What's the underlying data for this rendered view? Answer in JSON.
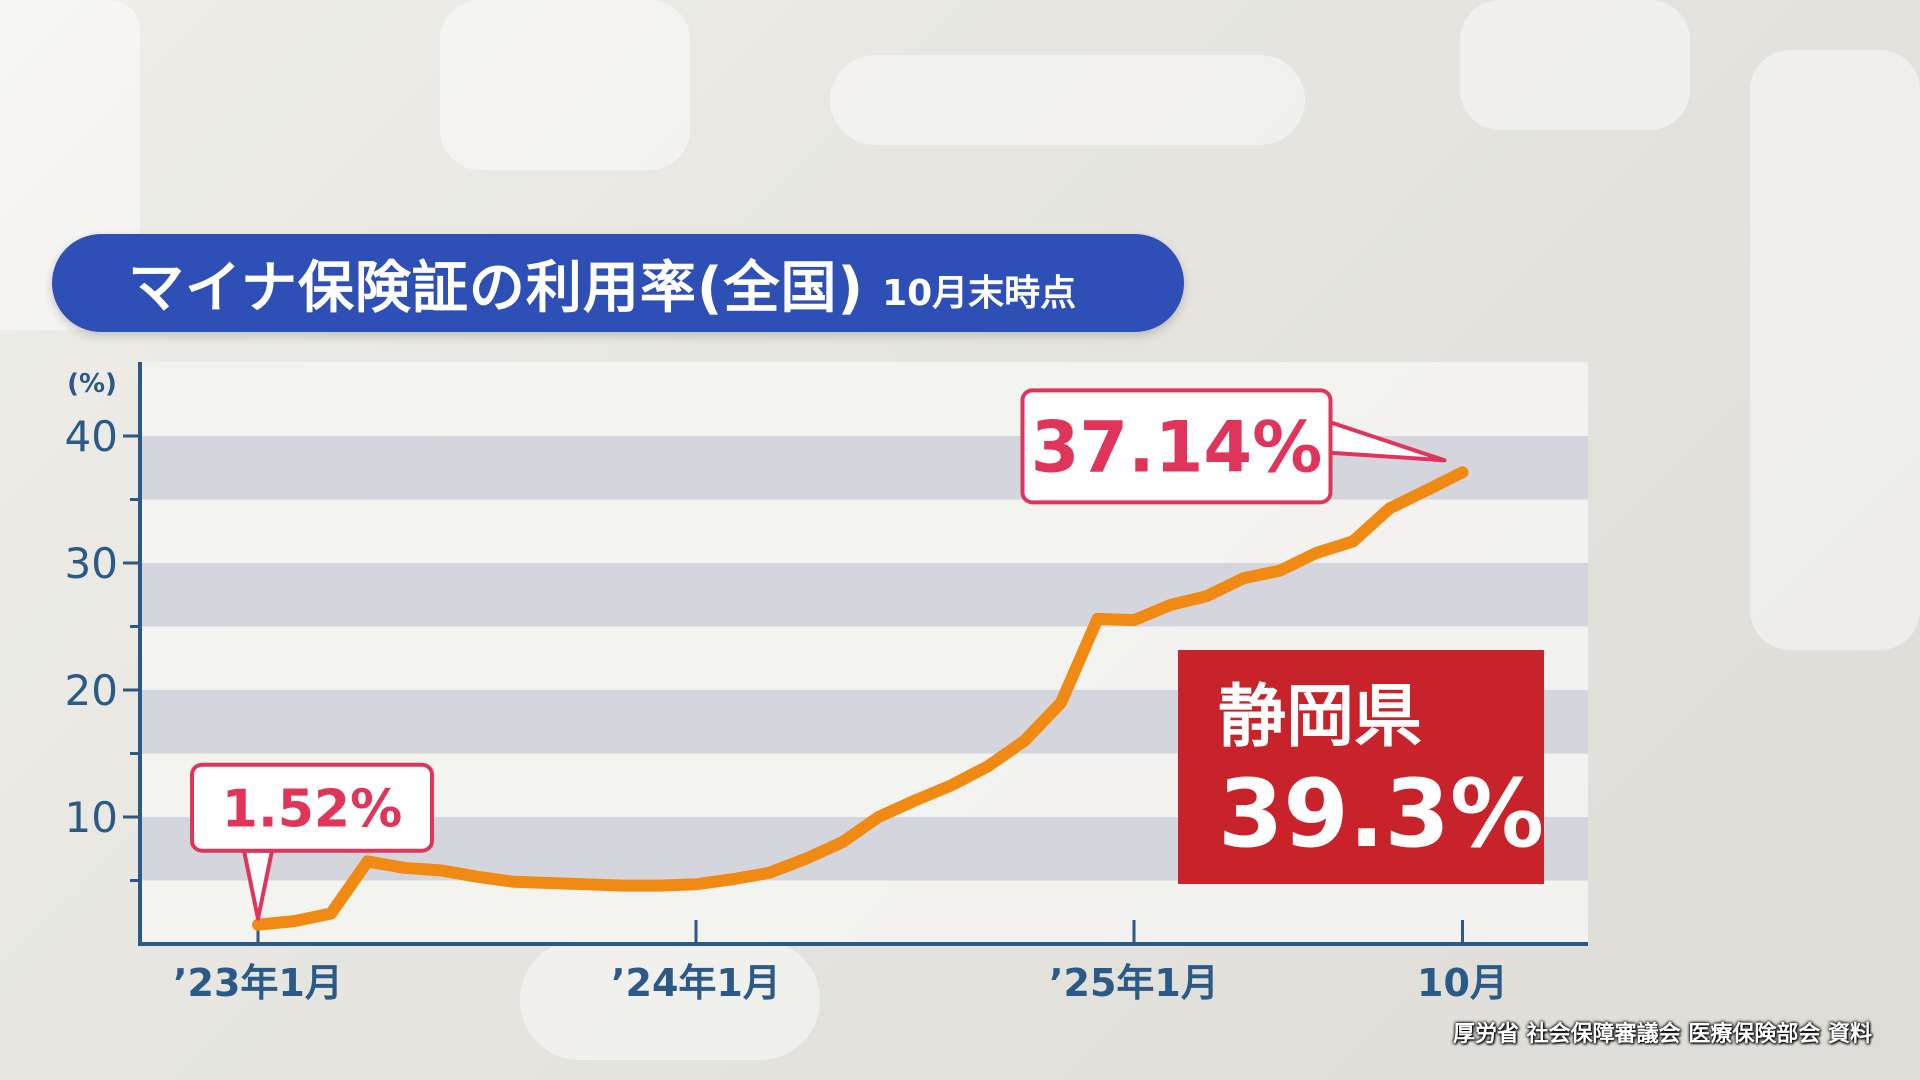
{
  "title": "マイナ保険証の利用率(全国)",
  "subtitle": "10月末時点",
  "source": "厚労省 社会保障審議会 医療保険部会 資料",
  "colors": {
    "banner": "#2d4fb6",
    "line": "#f08a12",
    "axis": "#2b5a86",
    "callout": "#e0355b",
    "highlight_box": "#c8232a"
  },
  "chart_data": {
    "type": "line",
    "title": "マイナ保険証の利用率(全国)",
    "y_unit_label": "(%)",
    "ylim": [
      0,
      40
    ],
    "y_ticks": [
      "40",
      "30",
      "20",
      "10"
    ],
    "x_ticks": [
      {
        "label": "’23年1月",
        "index": 0
      },
      {
        "label": "’24年1月",
        "index": 12
      },
      {
        "label": "’25年1月",
        "index": 24
      },
      {
        "label": "10月",
        "index": 33
      }
    ],
    "series": [
      {
        "values": [
          1.52,
          1.8,
          2.4,
          6.5,
          6.0,
          5.8,
          5.3,
          4.9,
          4.8,
          4.7,
          4.6,
          4.6,
          4.7,
          5.1,
          5.6,
          6.7,
          8.0,
          10.0,
          11.3,
          12.5,
          14.0,
          16.0,
          19.0,
          25.6,
          25.5,
          26.7,
          27.4,
          28.8,
          29.4,
          30.8,
          31.7,
          34.3,
          35.7,
          37.14
        ]
      }
    ],
    "callouts": [
      {
        "label": "1.52%",
        "index": 0
      },
      {
        "label": "37.14%",
        "index": 33
      }
    ],
    "highlight": {
      "region": "静岡県",
      "value": "39.3%"
    }
  }
}
